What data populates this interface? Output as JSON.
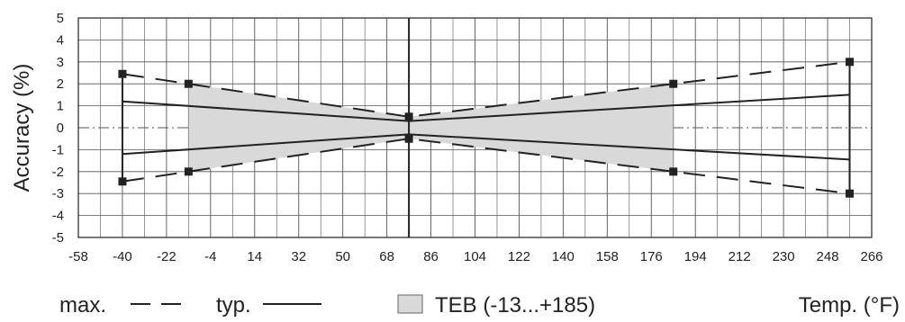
{
  "chart_data": {
    "type": "line",
    "xlabel": "Temp. (°F)",
    "ylabel": "Accuracy (%)",
    "xlim": [
      -58,
      266
    ],
    "ylim": [
      -5,
      5
    ],
    "x_ticks": [
      -58,
      -40,
      -22,
      -4,
      14,
      32,
      50,
      68,
      86,
      104,
      122,
      140,
      158,
      176,
      194,
      212,
      230,
      248,
      266
    ],
    "y_ticks": [
      5,
      4,
      3,
      2,
      1,
      0,
      -1,
      -2,
      -3,
      -4,
      -5
    ],
    "grid": true,
    "reference_x": 77,
    "series": [
      {
        "name": "max.",
        "style": "dashed",
        "markers": true,
        "points": [
          [
            -40,
            2.45
          ],
          [
            -13,
            2.0
          ],
          [
            77,
            0.5
          ],
          [
            185,
            2.0
          ],
          [
            257,
            3.0
          ]
        ]
      },
      {
        "name": "",
        "style": "dashed",
        "markers": true,
        "points": [
          [
            -40,
            -2.45
          ],
          [
            -13,
            -2.0
          ],
          [
            77,
            -0.5
          ],
          [
            185,
            -2.0
          ],
          [
            257,
            -3.0
          ]
        ]
      },
      {
        "name": "typ.",
        "style": "solid",
        "markers": false,
        "points": [
          [
            -40,
            1.2
          ],
          [
            77,
            0.3
          ],
          [
            257,
            1.5
          ]
        ]
      },
      {
        "name": "",
        "style": "solid",
        "markers": false,
        "points": [
          [
            -40,
            -1.2
          ],
          [
            77,
            -0.3
          ],
          [
            257,
            -1.45
          ]
        ]
      }
    ],
    "teb_band": {
      "upper": [
        [
          -13,
          2.0
        ],
        [
          77,
          0.5
        ],
        [
          185,
          2.0
        ]
      ],
      "lower": [
        [
          -13,
          -2.0
        ],
        [
          77,
          -0.5
        ],
        [
          185,
          -2.0
        ]
      ]
    },
    "end_bars_x": [
      -40,
      257
    ],
    "legend": {
      "max_label": "max.",
      "typ_label": "typ.",
      "teb_label": "TEB (-13...+185)"
    },
    "colors": {
      "line": "#222222",
      "grid": "#555555",
      "band": "#d9d9d9",
      "band_edge": "#888888"
    }
  }
}
